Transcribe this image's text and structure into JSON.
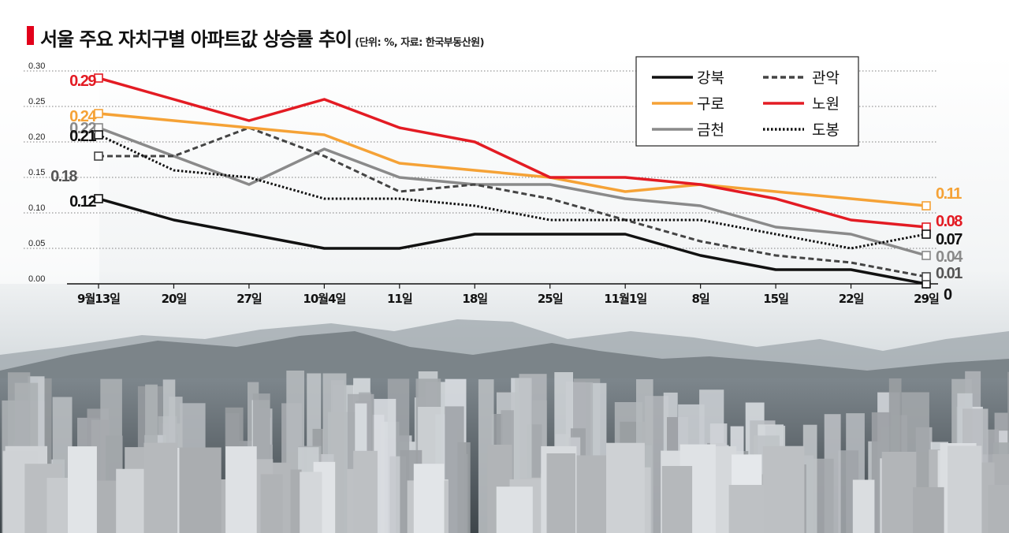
{
  "title": {
    "main": "서울 주요 자치구별 아파트값 상승률 추이",
    "sub": "(단위: %, 자료: 한국부동산원)",
    "accent_color": "#e2001a"
  },
  "chart_data": {
    "type": "line",
    "categories": [
      "9월13일",
      "20일",
      "27일",
      "10월4일",
      "11일",
      "18일",
      "25일",
      "11월1일",
      "8일",
      "15일",
      "22일",
      "29일"
    ],
    "y_ticks": [
      "0.30",
      "0.25",
      "0.20",
      "0.15",
      "0.10",
      "0.05",
      "0.00"
    ],
    "ylim": [
      0,
      0.3
    ],
    "grid": "horizontal dotted",
    "legend_position": "top-right",
    "background_image": "seoul-apartment-skyline-photo",
    "series": [
      {
        "name": "강북",
        "color": "#111111",
        "style": "solid",
        "values": [
          0.12,
          0.09,
          0.07,
          0.05,
          0.05,
          0.07,
          0.07,
          0.07,
          0.04,
          0.02,
          0.02,
          0.0
        ],
        "start_label": "0.12",
        "end_label": "0"
      },
      {
        "name": "구로",
        "color": "#f5a236",
        "style": "solid",
        "values": [
          0.24,
          0.23,
          0.22,
          0.21,
          0.17,
          0.16,
          0.15,
          0.13,
          0.14,
          0.13,
          0.12,
          0.11
        ],
        "start_label": "0.24",
        "end_label": "0.11"
      },
      {
        "name": "금천",
        "color": "#8a8a8a",
        "style": "solid",
        "values": [
          0.22,
          0.18,
          0.14,
          0.19,
          0.15,
          0.14,
          0.14,
          0.12,
          0.11,
          0.08,
          0.07,
          0.04
        ],
        "start_label": "0.22",
        "end_label": "0.04"
      },
      {
        "name": "관악",
        "color": "#444444",
        "style": "dashed",
        "values": [
          0.18,
          0.18,
          0.22,
          0.18,
          0.13,
          0.14,
          0.12,
          0.09,
          0.06,
          0.04,
          0.03,
          0.01
        ],
        "start_label": "0.18",
        "end_label": "0.01"
      },
      {
        "name": "노원",
        "color": "#e31b23",
        "style": "solid",
        "values": [
          0.29,
          0.26,
          0.23,
          0.26,
          0.22,
          0.2,
          0.15,
          0.15,
          0.14,
          0.12,
          0.09,
          0.08
        ],
        "start_label": "0.29",
        "end_label": "0.08"
      },
      {
        "name": "도봉",
        "color": "#111111",
        "style": "dotted",
        "values": [
          0.21,
          0.16,
          0.15,
          0.12,
          0.12,
          0.11,
          0.09,
          0.09,
          0.09,
          0.07,
          0.05,
          0.07
        ],
        "start_label": "0.21",
        "end_label": "0.07"
      }
    ]
  }
}
